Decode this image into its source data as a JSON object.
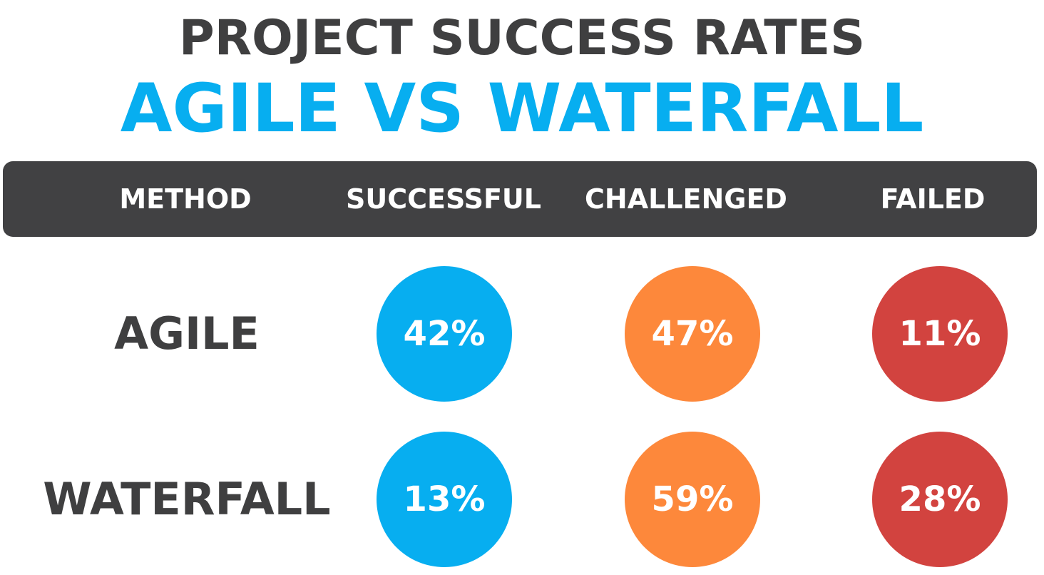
{
  "header": {
    "title": "PROJECT SUCCESS RATES",
    "subtitle": "AGILE VS WATERFALL"
  },
  "chart_data": {
    "type": "table",
    "title": "PROJECT SUCCESS RATES",
    "subtitle": "AGILE VS WATERFALL",
    "columns": [
      "METHOD",
      "SUCCESSFUL",
      "CHALLENGED",
      "FAILED"
    ],
    "rows": [
      {
        "method": "AGILE",
        "values": [
          42,
          47,
          11
        ],
        "labels": [
          "42%",
          "47%",
          "11%"
        ]
      },
      {
        "method": "WATERFALL",
        "values": [
          13,
          59,
          28
        ],
        "labels": [
          "13%",
          "59%",
          "28%"
        ]
      }
    ],
    "unit": "%",
    "colors": {
      "SUCCESSFUL": "#07aef0",
      "CHALLENGED": "#fd883b",
      "FAILED": "#d2433f",
      "header_bar": "#414143",
      "title": "#3f3f40",
      "subtitle": "#07aef0"
    }
  }
}
